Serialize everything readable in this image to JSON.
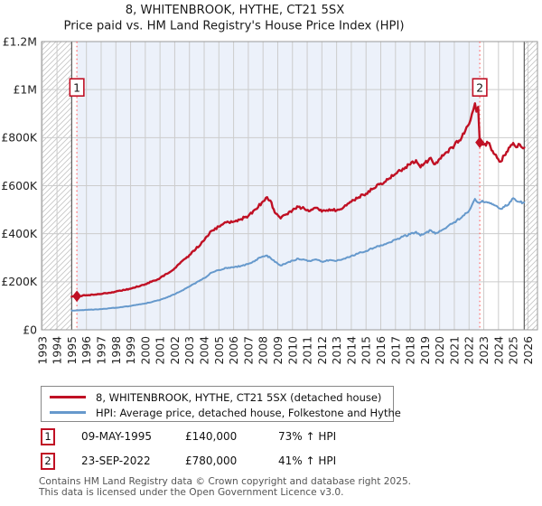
{
  "page": {
    "title_line1": "8, WHITENBROOK, HYTHE, CT21 5SX",
    "title_line2": "Price paid vs. HM Land Registry's House Price Index (HPI)"
  },
  "legend": {
    "items": [
      {
        "label": "8, WHITENBROOK, HYTHE, CT21 5SX (detached house)",
        "color": "#c01024"
      },
      {
        "label": "HPI: Average price, detached house, Folkestone and Hythe",
        "color": "#6699cc"
      }
    ]
  },
  "annotations": [
    {
      "n": "1",
      "date": "09-MAY-1995",
      "price": "£140,000",
      "hpi": "73% ↑ HPI"
    },
    {
      "n": "2",
      "date": "23-SEP-2022",
      "price": "£780,000",
      "hpi": "41% ↑ HPI"
    }
  ],
  "footer": {
    "line1": "Contains HM Land Registry data © Crown copyright and database right 2025.",
    "line2": "This data is licensed under the Open Government Licence v3.0."
  },
  "chart_data": {
    "type": "line",
    "title": "8, WHITENBROOK, HYTHE, CT21 5SX",
    "subtitle": "Price paid vs. HM Land Registry's House Price Index (HPI)",
    "xlabel": "",
    "ylabel": "",
    "grid": true,
    "legend_position": "bottom",
    "xlim": [
      1992.95,
      2026.65
    ],
    "ylim": [
      0,
      1200000
    ],
    "x_ticks": [
      1993,
      1994,
      1995,
      1996,
      1997,
      1998,
      1999,
      2000,
      2001,
      2002,
      2003,
      2004,
      2005,
      2006,
      2007,
      2008,
      2009,
      2010,
      2011,
      2012,
      2013,
      2014,
      2015,
      2016,
      2017,
      2018,
      2019,
      2020,
      2021,
      2022,
      2023,
      2024,
      2025,
      2026
    ],
    "y_ticks": [
      {
        "value": 0,
        "label": "£0"
      },
      {
        "value": 200000,
        "label": "£200K"
      },
      {
        "value": 400000,
        "label": "£400K"
      },
      {
        "value": 600000,
        "label": "£600K"
      },
      {
        "value": 800000,
        "label": "£800K"
      },
      {
        "value": 1000000,
        "label": "£1M"
      },
      {
        "value": 1200000,
        "label": "£1.2M"
      }
    ],
    "data_start": 1995.0,
    "data_end": 2025.75,
    "sales": [
      {
        "n": "1",
        "x": 1995.35,
        "date": "09-MAY-1995",
        "price": 140000,
        "vs_hpi": "73% ↑ HPI"
      },
      {
        "n": "2",
        "x": 2022.73,
        "date": "23-SEP-2022",
        "price": 780000,
        "vs_hpi": "41% ↑ HPI"
      }
    ],
    "series": [
      {
        "name": "8, WHITENBROOK, HYTHE, CT21 5SX (detached house)",
        "color": "#c01024",
        "width": 2.4,
        "wiggle": 0.011,
        "x": [
          1995.0,
          1995.35,
          1996,
          1997,
          1998,
          1999,
          2000,
          2001,
          2002,
          2003,
          2004,
          2004.5,
          2005,
          2005.5,
          2006,
          2006.5,
          2007,
          2007.5,
          2008.0,
          2008.2,
          2008.5,
          2008.8,
          2009.2,
          2009.6,
          2010,
          2010.4,
          2010.8,
          2011.2,
          2011.6,
          2012,
          2012.5,
          2013,
          2013.5,
          2014,
          2014.5,
          2015,
          2015.5,
          2016,
          2016.5,
          2017,
          2017.5,
          2018,
          2018.4,
          2018.7,
          2019,
          2019.4,
          2019.7,
          2020,
          2020.5,
          2021,
          2021.5,
          2022,
          2022.2,
          2022.4,
          2022.5,
          2022.62,
          2022.73,
          2023.0,
          2023.3,
          2023.6,
          2023.9,
          2024.15,
          2024.4,
          2024.7,
          2025.0,
          2025.2,
          2025.45,
          2025.75
        ],
        "y": [
          138000,
          140000,
          144000,
          149000,
          159000,
          171000,
          190000,
          215000,
          256000,
          311000,
          372000,
          412000,
          430000,
          447000,
          450000,
          461000,
          474000,
          502000,
          535000,
          550000,
          538000,
          488000,
          464000,
          481000,
          498000,
          512000,
          505000,
          495000,
          508000,
          492000,
          502000,
          497000,
          512000,
          533000,
          552000,
          567000,
          588000,
          609000,
          626000,
          649000,
          671000,
          688000,
          706000,
          676000,
          695000,
          716000,
          690000,
          712000,
          740000,
          768000,
          800000,
          856000,
          900000,
          943000,
          908000,
          928000,
          780000,
          772000,
          778000,
          745000,
          716000,
          700000,
          726000,
          758000,
          778000,
          760000,
          772000,
          758000
        ]
      },
      {
        "name": "HPI: Average price, detached house, Folkestone and Hythe",
        "color": "#6699cc",
        "width": 2.0,
        "wiggle": 0.009,
        "x": [
          1995.0,
          1995.35,
          1996,
          1997,
          1998,
          1999,
          2000,
          2001,
          2002,
          2003,
          2004,
          2004.5,
          2005,
          2005.5,
          2006,
          2006.5,
          2007,
          2007.5,
          2008.0,
          2008.2,
          2008.5,
          2008.8,
          2009.2,
          2009.6,
          2010,
          2010.4,
          2010.8,
          2011.2,
          2011.6,
          2012,
          2012.5,
          2013,
          2013.5,
          2014,
          2014.5,
          2015,
          2015.5,
          2016,
          2016.5,
          2017,
          2017.5,
          2018,
          2018.4,
          2018.7,
          2019,
          2019.4,
          2019.7,
          2020,
          2020.5,
          2021,
          2021.5,
          2022,
          2022.2,
          2022.4,
          2022.6,
          2022.9,
          2023.2,
          2023.5,
          2023.8,
          2024.1,
          2024.4,
          2024.7,
          2025.0,
          2025.2,
          2025.45,
          2025.75
        ],
        "y": [
          80000,
          81000,
          83000,
          86000,
          92000,
          99000,
          110000,
          124000,
          148000,
          180000,
          215000,
          238000,
          249000,
          258000,
          260000,
          266000,
          274000,
          290000,
          306000,
          309000,
          300000,
          283000,
          268000,
          278000,
          288000,
          296000,
          292000,
          286000,
          293000,
          284000,
          290000,
          287000,
          296000,
          308000,
          319000,
          328000,
          340000,
          352000,
          362000,
          375000,
          388000,
          398000,
          408000,
          392000,
          402000,
          414000,
          400000,
          412000,
          428000,
          448000,
          468000,
          495000,
          520000,
          545000,
          530000,
          538000,
          532000,
          527000,
          517000,
          505000,
          512000,
          522000,
          548000,
          537000,
          532000,
          530000
        ]
      }
    ],
    "colors": {
      "background": "#ffffff",
      "shade": "#ecf1fa",
      "grid": "#cccccc",
      "hatch": "#c6c6c6",
      "boundary": "#5f5f5f",
      "border": "#9a9a9a",
      "sale_line": "#ff6b6b"
    }
  }
}
